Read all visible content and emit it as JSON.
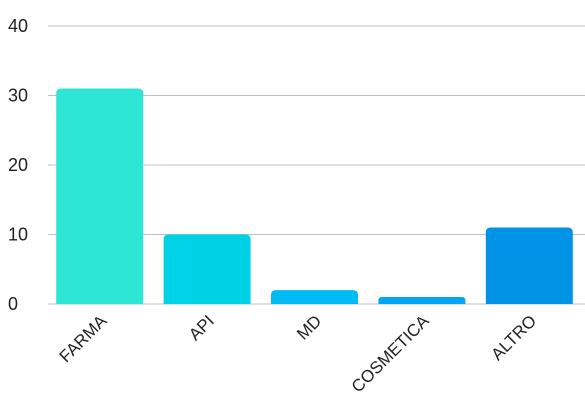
{
  "chart_data": {
    "type": "bar",
    "categories": [
      "FARMA",
      "API",
      "MD",
      "COSMETICA",
      "ALTRO"
    ],
    "values": [
      31,
      10,
      2,
      1,
      11
    ],
    "ylim": [
      0,
      40
    ],
    "yticks": [
      0,
      10,
      20,
      30,
      40
    ],
    "grid": true,
    "colors": [
      "#2ee6d6",
      "#00d2e5",
      "#00bbf3",
      "#00a6f4",
      "#0093e6"
    ]
  }
}
